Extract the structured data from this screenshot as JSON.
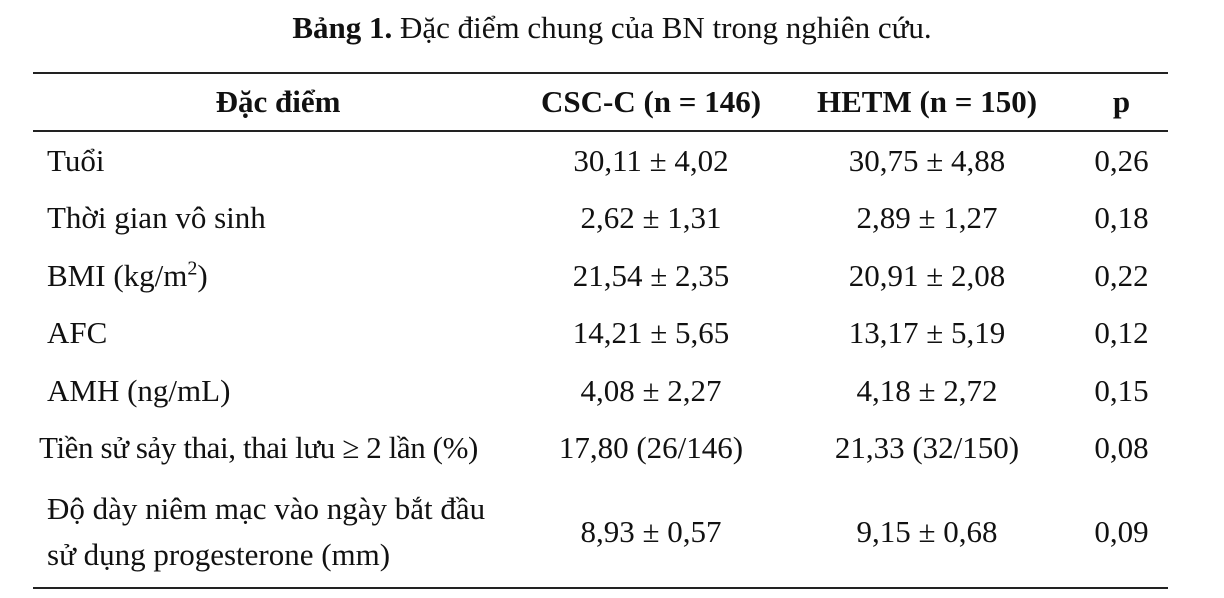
{
  "caption": {
    "label": "Bảng 1.",
    "text": "Đặc điểm chung của BN trong nghiên cứu."
  },
  "table": {
    "headers": [
      "Đặc điểm",
      "CSC-C (n = 146)",
      "HETM (n = 150)",
      "p"
    ],
    "rows": [
      {
        "label": "Tuổi",
        "csc": "30,11 ± 4,02",
        "hetm": "30,75 ± 4,88",
        "p": "0,26"
      },
      {
        "label": "Thời gian vô sinh",
        "csc": "2,62 ± 1,31",
        "hetm": "2,89 ± 1,27",
        "p": "0,18"
      },
      {
        "label": "BMI (kg/m",
        "label_sup": "2",
        "label_tail": ")",
        "csc": "21,54 ± 2,35",
        "hetm": "20,91 ± 2,08",
        "p": "0,22"
      },
      {
        "label": "AFC",
        "csc": "14,21 ± 5,65",
        "hetm": "13,17 ± 5,19",
        "p": "0,12"
      },
      {
        "label": "AMH (ng/mL)",
        "csc": "4,08 ± 2,27",
        "hetm": "4,18 ± 2,72",
        "p": "0,15"
      },
      {
        "label": "Tiền sử sảy thai, thai lưu ≥ 2 lần (%)",
        "csc": "17,80 (26/146)",
        "hetm": "21,33 (32/150)",
        "p": "0,08"
      },
      {
        "label_line1": "Độ dày niêm mạc vào ngày bắt đầu",
        "label_line2": "sử dụng progesterone (mm)",
        "csc": "8,93 ± 0,57",
        "hetm": "9,15 ± 0,68",
        "p": "0,09"
      }
    ]
  }
}
